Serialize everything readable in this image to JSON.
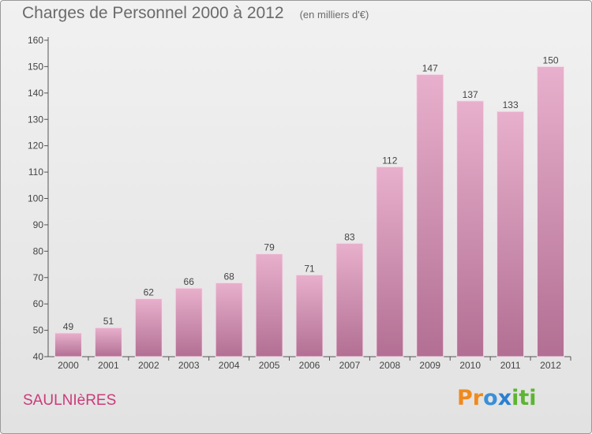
{
  "header": {
    "title": "Charges de Personnel 2000 à 2012",
    "unit": "(en milliers d'€)"
  },
  "footer": {
    "commune": "SAULNIèRES",
    "logo_letters": [
      "P",
      "r",
      "o",
      "x",
      "i",
      "t",
      "i"
    ],
    "logo_colors": [
      "#f08a1e",
      "#f08a1e",
      "#3a8fd8",
      "#2b7fd0",
      "#5cb531",
      "#5cb531",
      "#5cb531"
    ]
  },
  "colors": {
    "bar_light": "#e8b0cc",
    "bar_dark": "#b26f93",
    "axis": "#555555",
    "commune_text": "#cc3a7a"
  },
  "chart_data": {
    "type": "bar",
    "title": "Charges de Personnel 2000 à 2012",
    "subtitle": "(en milliers d'€)",
    "categories": [
      "2000",
      "2001",
      "2002",
      "2003",
      "2004",
      "2005",
      "2006",
      "2007",
      "2008",
      "2009",
      "2010",
      "2011",
      "2012"
    ],
    "values": [
      49,
      51,
      62,
      66,
      68,
      79,
      71,
      83,
      112,
      147,
      137,
      133,
      150
    ],
    "ylim": [
      40,
      160
    ],
    "yticks": [
      40,
      50,
      60,
      70,
      80,
      90,
      100,
      110,
      120,
      130,
      140,
      150,
      160
    ],
    "grid": false,
    "data_labels": true
  }
}
